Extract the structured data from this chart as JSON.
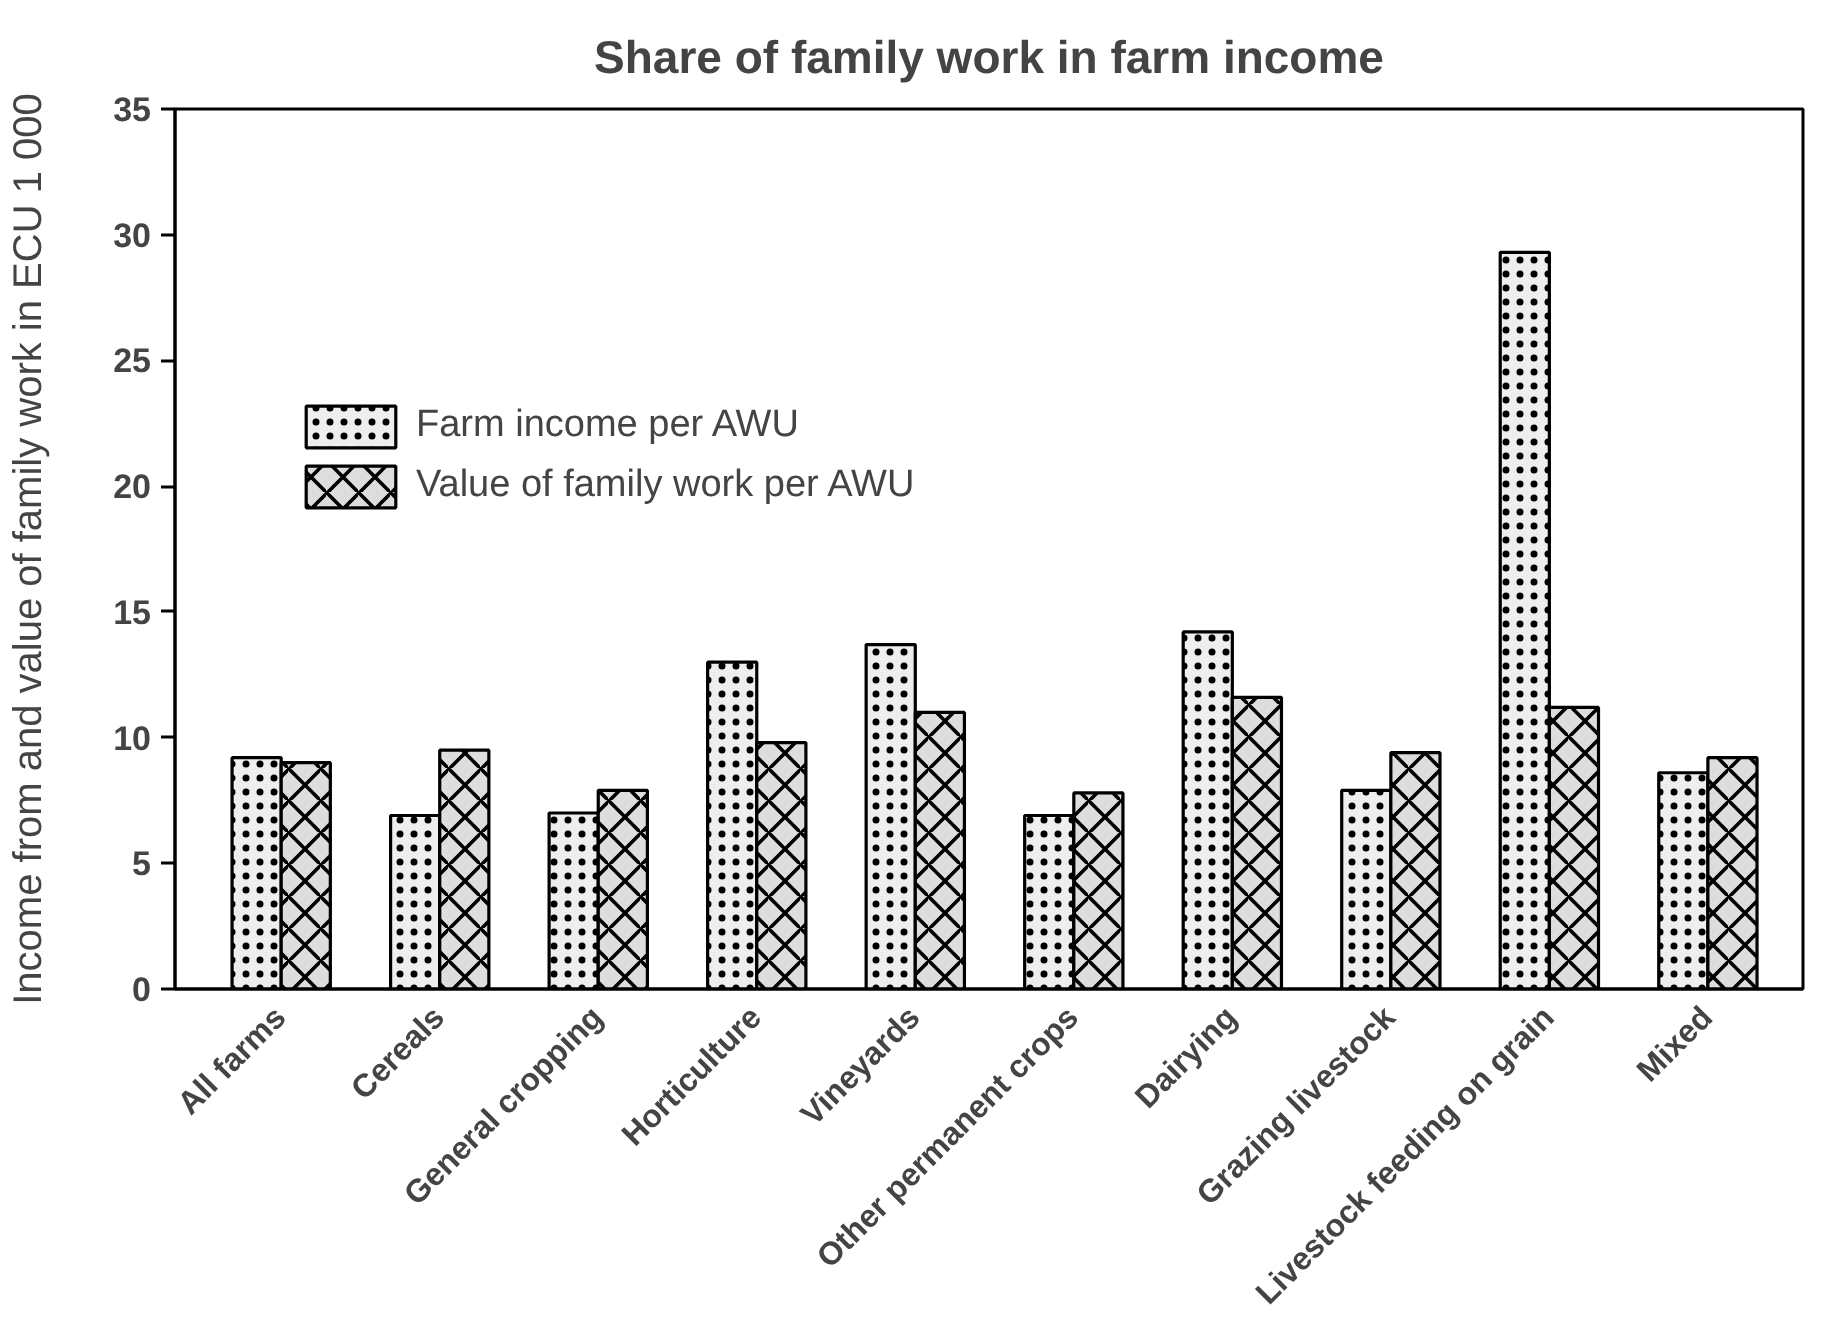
{
  "chart_data": {
    "type": "bar",
    "title": "Share of family work in farm income",
    "ylabel": "Income from and value of family work in ECU 1 000",
    "categories": [
      "All farms",
      "Cereals",
      "General cropping",
      "Horticulture",
      "Vineyards",
      "Other permanent crops",
      "Dairying",
      "Grazing livestock",
      "Livestock feeding on grain",
      "Mixed"
    ],
    "series": [
      {
        "name": "Farm income per AWU",
        "color": "#eeeeee",
        "values": [
          9.2,
          6.9,
          7.0,
          13.0,
          13.7,
          6.9,
          14.2,
          7.9,
          29.3,
          8.6
        ]
      },
      {
        "name": "Value of family work per AWU",
        "color": "#dddddd",
        "values": [
          9.0,
          9.5,
          7.9,
          9.8,
          11.0,
          7.8,
          11.6,
          9.4,
          11.2,
          9.2
        ]
      }
    ],
    "ylim": [
      0,
      35
    ],
    "yticks": [
      0,
      5,
      10,
      15,
      20,
      25,
      30,
      35
    ],
    "grid": false,
    "legend": "top left"
  }
}
